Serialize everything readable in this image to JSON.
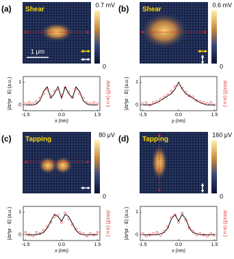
{
  "panels": [
    {
      "label": "(a)",
      "mode": "Shear",
      "colorbar_max": "0.7 mV",
      "colorbar_min": "0",
      "scale_bar": "1 μm",
      "chart_data": {
        "type": "line",
        "xlabel": "x (nm)",
        "ylabel": "|∂z²pr · E| (a.u.)",
        "y2label": "∂zεz(f) (a.u.)",
        "x": [
          -1.5,
          -1.35,
          -1.2,
          -1.05,
          -0.9,
          -0.75,
          -0.6,
          -0.45,
          -0.3,
          -0.15,
          0,
          0.15,
          0.3,
          0.45,
          0.6,
          0.75,
          0.9,
          1.05,
          1.2,
          1.35,
          1.5
        ],
        "xlim": [
          -1.6,
          1.6
        ],
        "ylim": [
          -0.25,
          1.25
        ],
        "xticks": [
          -1.5,
          {
            "value": 0,
            "label": "0.0"
          },
          1.5
        ],
        "yticks": [
          0,
          1
        ],
        "series": [
          {
            "color": "#000000",
            "marker": "none",
            "values": [
              0,
              0,
              0,
              0.05,
              0.2,
              0.6,
              0.8,
              0.3,
              0.5,
              0.8,
              0.3,
              0.8,
              0.5,
              0.3,
              0.8,
              0.6,
              0.2,
              0.05,
              0,
              0,
              0
            ]
          },
          {
            "color": "#e03030",
            "marker": "circle",
            "values": [
              0.05,
              0.1,
              0.05,
              0.15,
              0.3,
              0.5,
              0.7,
              0.4,
              0.6,
              0.7,
              0.4,
              0.75,
              0.55,
              0.35,
              0.7,
              0.5,
              0.3,
              0.1,
              0.05,
              0.1,
              0.05
            ]
          }
        ]
      }
    },
    {
      "label": "(b)",
      "mode": "Shear",
      "colorbar_max": "0.6 mV",
      "colorbar_min": "0",
      "chart_data": {
        "type": "line",
        "xlabel": "y (nm)",
        "ylabel": "|∂z²pr · E| (a.u.)",
        "y2label": "∂zεz(f) (a.u.)",
        "x": [
          -1.5,
          -1.35,
          -1.2,
          -1.05,
          -0.9,
          -0.75,
          -0.6,
          -0.45,
          -0.3,
          -0.15,
          0,
          0.15,
          0.3,
          0.45,
          0.6,
          0.75,
          0.9,
          1.05,
          1.2,
          1.35,
          1.5
        ],
        "xlim": [
          -1.6,
          1.6
        ],
        "ylim": [
          -0.25,
          1.25
        ],
        "xticks": [
          -1.5,
          {
            "value": 0,
            "label": "0.0"
          },
          1.5
        ],
        "yticks": [
          0,
          1
        ],
        "series": [
          {
            "color": "#000000",
            "marker": "none",
            "values": [
              0,
              0,
              0,
              0.05,
              0.1,
              0.2,
              0.3,
              0.4,
              0.5,
              0.7,
              1,
              0.7,
              0.5,
              0.4,
              0.3,
              0.2,
              0.1,
              0.05,
              0,
              0,
              0
            ]
          },
          {
            "color": "#e03030",
            "marker": "circle",
            "values": [
              0.05,
              0.1,
              0,
              0.1,
              0.15,
              0.25,
              0.35,
              0.45,
              0.6,
              0.8,
              0.9,
              0.75,
              0.55,
              0.4,
              0.35,
              0.2,
              0.15,
              0.1,
              0.05,
              0.1,
              0
            ]
          }
        ]
      }
    },
    {
      "label": "(c)",
      "mode": "Tapping",
      "colorbar_max": "80 μV",
      "colorbar_min": "0",
      "chart_data": {
        "type": "line",
        "xlabel": "x (nm)",
        "ylabel": "|∂z²pr · E| (a.u.)",
        "y2label": "∂zεz(f) (a.u.)",
        "x": [
          -1.5,
          -1.35,
          -1.2,
          -1.05,
          -0.9,
          -0.75,
          -0.6,
          -0.45,
          -0.3,
          -0.15,
          0,
          0.15,
          0.3,
          0.45,
          0.6,
          0.75,
          0.9,
          1.05,
          1.2,
          1.35,
          1.5
        ],
        "xlim": [
          -1.6,
          1.6
        ],
        "ylim": [
          -0.25,
          1.25
        ],
        "xticks": [
          -1.5,
          {
            "value": 0,
            "label": "0.0"
          },
          1.5
        ],
        "yticks": [
          0,
          1
        ],
        "series": [
          {
            "color": "#000000",
            "marker": "none",
            "values": [
              0,
              0,
              0,
              0,
              0.05,
              0.1,
              0.3,
              0.6,
              0.9,
              0.8,
              0.6,
              0.9,
              0.8,
              0.5,
              0.2,
              0.05,
              0,
              0,
              0,
              0,
              0
            ]
          },
          {
            "color": "#e03030",
            "marker": "circle",
            "values": [
              0.1,
              0,
              -0.05,
              0.1,
              0.05,
              0.2,
              0.35,
              0.55,
              0.8,
              0.85,
              0.55,
              0.95,
              0.7,
              0.45,
              0.25,
              0.1,
              0.05,
              -0.05,
              0.05,
              0,
              0.1
            ]
          }
        ]
      }
    },
    {
      "label": "(d)",
      "mode": "Tapping",
      "colorbar_max": "160 μV",
      "colorbar_min": "0",
      "chart_data": {
        "type": "line",
        "xlabel": "x (nm)",
        "ylabel": "|∂z²pr · E| (a.u.)",
        "y2label": "∂zεz(f) (a.u.)",
        "x": [
          -1.5,
          -1.35,
          -1.2,
          -1.05,
          -0.9,
          -0.75,
          -0.6,
          -0.45,
          -0.3,
          -0.15,
          0,
          0.15,
          0.3,
          0.45,
          0.6,
          0.75,
          0.9,
          1.05,
          1.2,
          1.35,
          1.5
        ],
        "xlim": [
          -1.6,
          1.6
        ],
        "ylim": [
          -0.25,
          1.25
        ],
        "xticks": [
          -1.5,
          {
            "value": 0,
            "label": "0.0"
          },
          1.5
        ],
        "yticks": [
          0,
          1
        ],
        "series": [
          {
            "color": "#000000",
            "marker": "none",
            "values": [
              0,
              0,
              0,
              0,
              0,
              0.05,
              0.1,
              0.3,
              0.7,
              0.9,
              0.6,
              0.9,
              0.7,
              0.3,
              0.1,
              0.05,
              0,
              0,
              0,
              0,
              0
            ]
          },
          {
            "color": "#e03030",
            "marker": "circle",
            "values": [
              0.05,
              -0.05,
              0,
              0.05,
              0.1,
              0,
              0.15,
              0.35,
              0.75,
              0.85,
              0.55,
              0.95,
              0.65,
              0.3,
              0.15,
              0,
              0.05,
              0,
              -0.05,
              0.05,
              0
            ]
          }
        ]
      }
    }
  ]
}
